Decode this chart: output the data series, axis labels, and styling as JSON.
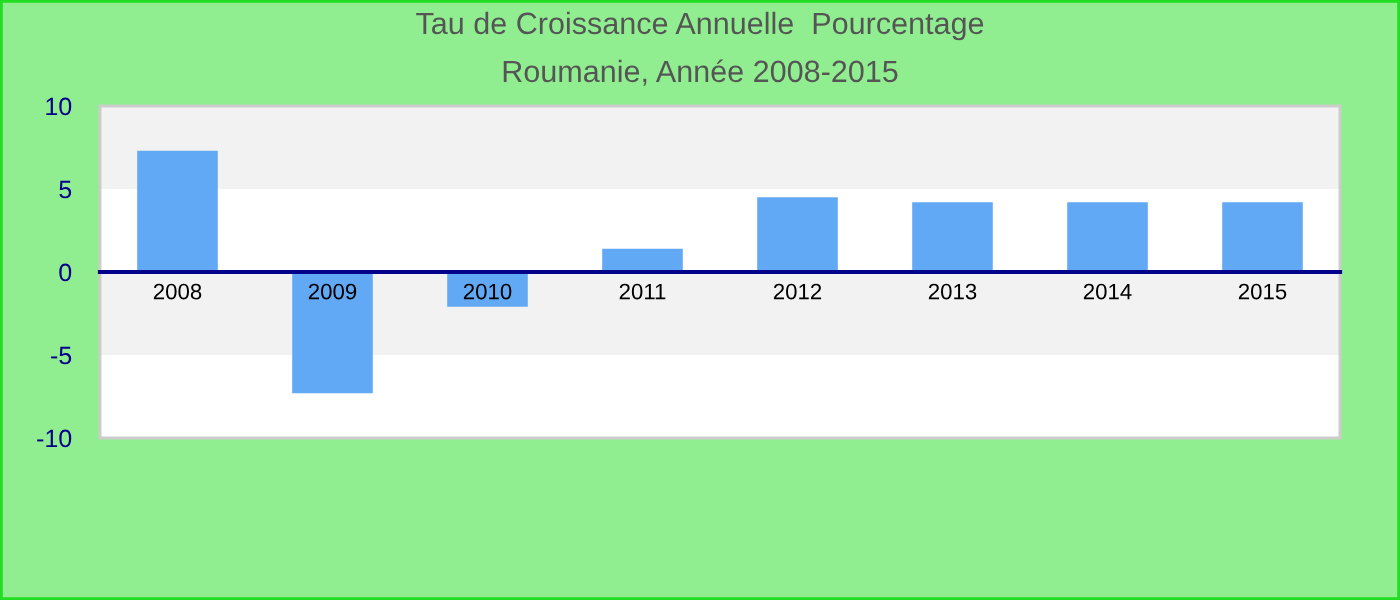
{
  "chart_data": {
    "type": "bar",
    "title": "Tau de Croissance Annuelle  Pourcentage",
    "subtitle": "Roumanie, Année 2008-2015",
    "categories": [
      "2008",
      "2009",
      "2010",
      "2011",
      "2012",
      "2013",
      "2014",
      "2015"
    ],
    "series": [
      {
        "color": "#62a9f5",
        "values": [
          7.3,
          -7.3,
          -2.1,
          1.4,
          4.5,
          4.2,
          4.2,
          4.2
        ]
      }
    ],
    "ylim": [
      -10,
      10
    ],
    "yticks": [
      -10,
      -5,
      0,
      5,
      10
    ],
    "grid": false,
    "legend": false,
    "bands": [
      {
        "axis": "y",
        "from": 5,
        "to": 10,
        "color": "#f2f2f2"
      },
      {
        "axis": "y",
        "from": -5,
        "to": 0,
        "color": "#f2f2f2"
      }
    ]
  }
}
